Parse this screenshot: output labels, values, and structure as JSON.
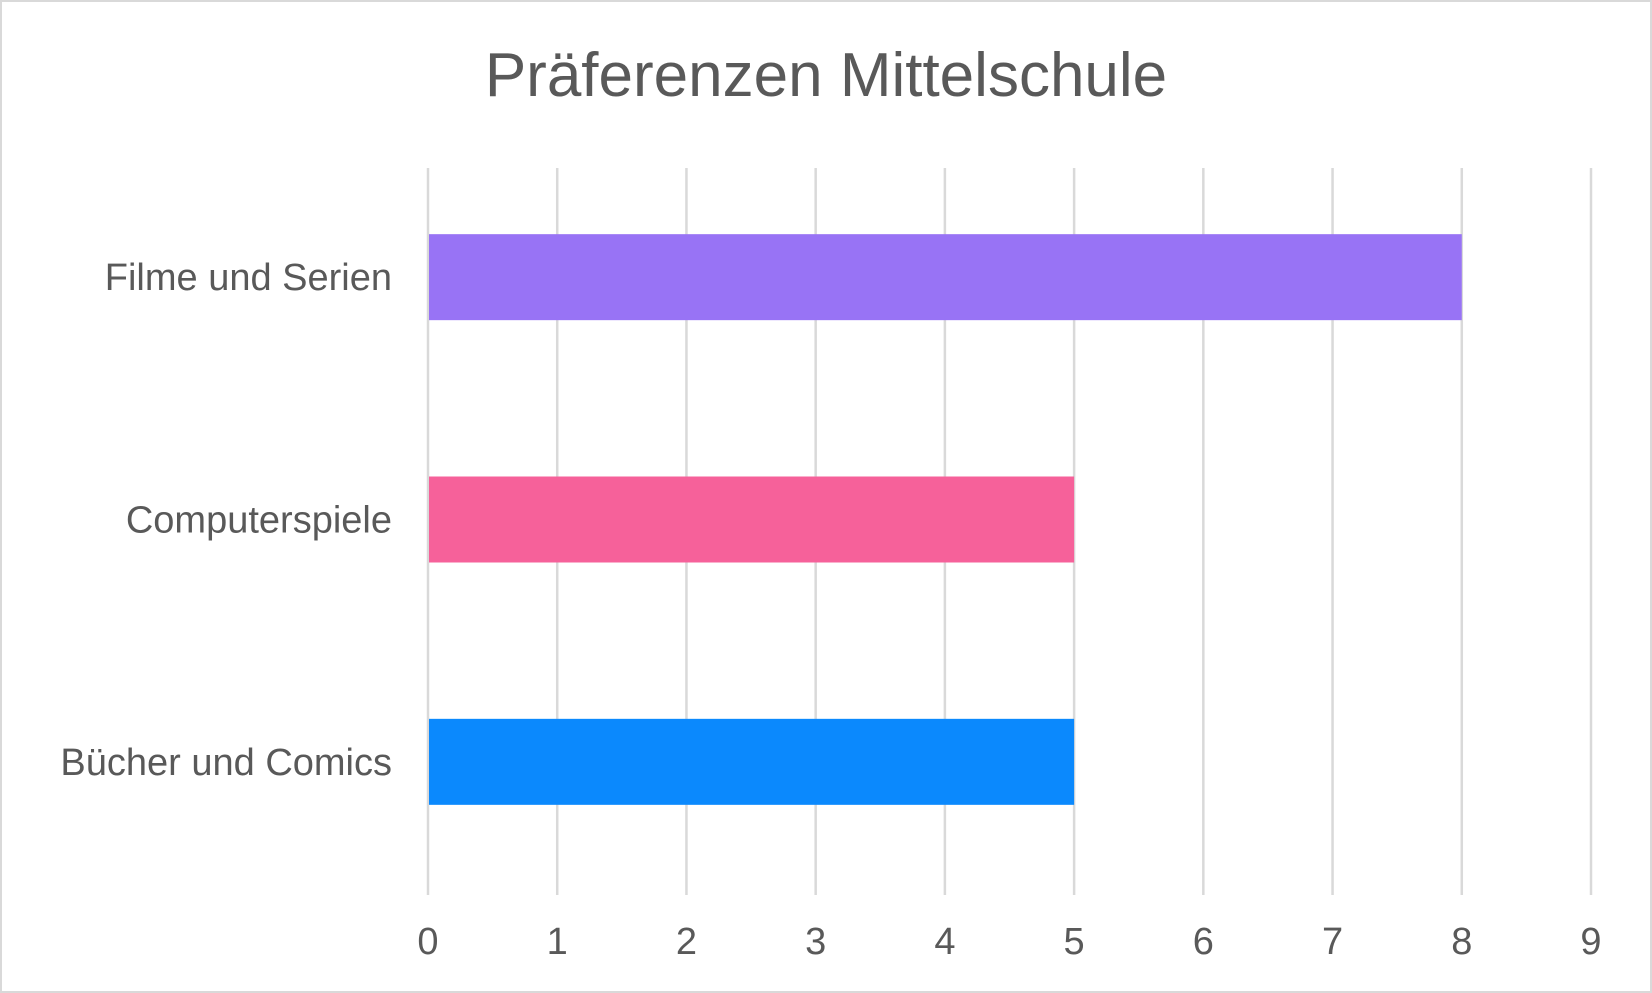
{
  "chart_data": {
    "type": "bar",
    "orientation": "horizontal",
    "title": "Präferenzen Mittelschule",
    "categories": [
      "Filme und Serien",
      "Computerspiele",
      "Bücher und Comics"
    ],
    "values": [
      8,
      5,
      5
    ],
    "colors": [
      "#9873f5",
      "#f6619a",
      "#0b89fd"
    ],
    "xlim": [
      0,
      9
    ],
    "xticks": [
      "0",
      "1",
      "2",
      "3",
      "4",
      "5",
      "6",
      "7",
      "8",
      "9"
    ],
    "grid": true,
    "legend": "none"
  }
}
